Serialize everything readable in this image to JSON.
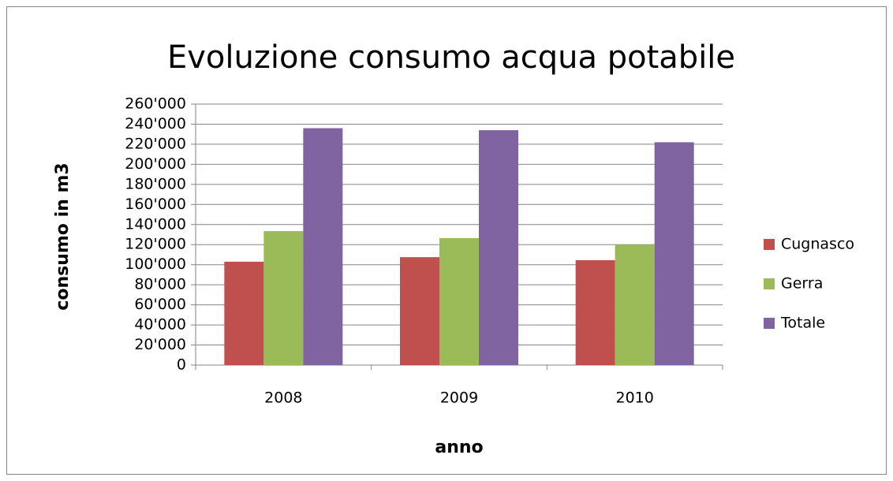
{
  "chart_data": {
    "type": "bar",
    "title": "Evoluzione consumo acqua potabile",
    "x_label": "anno",
    "y_label": "consumo in m3",
    "categories": [
      "2008",
      "2009",
      "2010"
    ],
    "series": [
      {
        "name": "Cugnasco",
        "color": "#c0504d",
        "values": [
          103000,
          107500,
          104500
        ]
      },
      {
        "name": "Gerra",
        "color": "#9bbb59",
        "values": [
          133500,
          126500,
          120000
        ]
      },
      {
        "name": "Totale",
        "color": "#8064a2",
        "values": [
          236000,
          234000,
          222000
        ]
      }
    ],
    "ylim": [
      0,
      260000
    ],
    "yticks": [
      0,
      {
        "value": 20000,
        "label": "20'000"
      },
      {
        "value": 40000,
        "label": "40'000"
      },
      {
        "value": 60000,
        "label": "60'000"
      },
      {
        "value": 80000,
        "label": "80'000"
      },
      {
        "value": 100000,
        "label": "100'000"
      },
      {
        "value": 120000,
        "label": "120'000"
      },
      {
        "value": 140000,
        "label": "140'000"
      },
      {
        "value": 160000,
        "label": "160'000"
      },
      {
        "value": 180000,
        "label": "180'000"
      },
      {
        "value": 200000,
        "label": "200'000"
      },
      {
        "value": 220000,
        "label": "220'000"
      },
      {
        "value": 240000,
        "label": "240'000"
      },
      {
        "value": 260000,
        "label": "260'000"
      }
    ],
    "grid": true,
    "legend": "right"
  }
}
